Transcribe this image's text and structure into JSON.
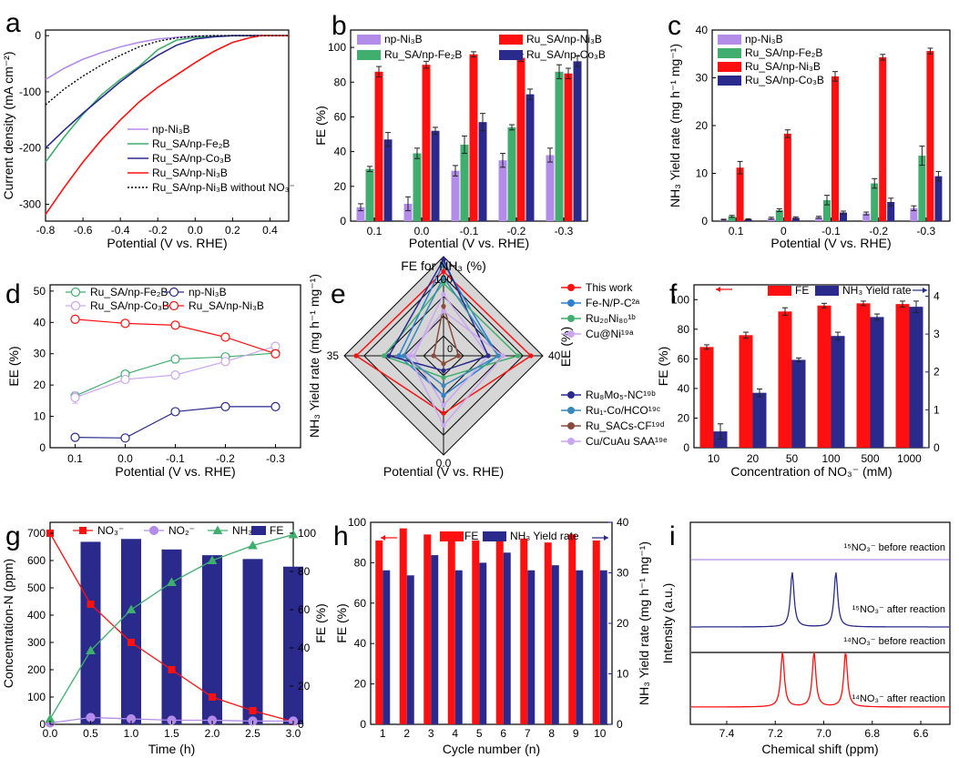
{
  "colors": {
    "purple": "#b28ce8",
    "green": "#3fae6e",
    "red": "#ff1010",
    "navy": "#2a2a8c",
    "black": "#000000",
    "lavender": "#c9a6ef",
    "brown": "#8a4a3c",
    "blue": "#2d7fd0",
    "teal": "#3a88b8",
    "diamond_fill": "#d6d6d6"
  },
  "chart_data": [
    {
      "panel": "a",
      "type": "line",
      "xlabel": "Potential (V vs. RHE)",
      "ylabel": "Current density (mA cm⁻²)",
      "xlim": [
        -0.8,
        0.5
      ],
      "ylim": [
        -330,
        10
      ],
      "xticks": [
        "-0.8",
        "-0.6",
        "-0.4",
        "-0.2",
        "0.0",
        "0.2",
        "0.4"
      ],
      "yticks": [
        "0",
        "-100",
        "-200",
        "-300"
      ],
      "series": [
        {
          "name": "np-Ni₃B",
          "color": "purple",
          "x": [
            -0.8,
            -0.7,
            -0.6,
            -0.5,
            -0.4,
            -0.3,
            -0.2,
            -0.1,
            0.0,
            0.1,
            0.2,
            0.3,
            0.5
          ],
          "y": [
            -78,
            -58,
            -42,
            -30,
            -20,
            -12,
            -6,
            -3,
            -1,
            0,
            0,
            0,
            0
          ]
        },
        {
          "name": "Ru_SA/np-Fe₂B",
          "color": "green",
          "x": [
            -0.8,
            -0.7,
            -0.6,
            -0.5,
            -0.4,
            -0.3,
            -0.2,
            -0.1,
            0.0,
            0.1,
            0.2,
            0.3,
            0.5
          ],
          "y": [
            -225,
            -180,
            -140,
            -105,
            -78,
            -55,
            -25,
            -8,
            -3,
            -1,
            0,
            0,
            0
          ]
        },
        {
          "name": "Ru_SA/np-Co₃B",
          "color": "navy",
          "x": [
            -0.8,
            -0.7,
            -0.6,
            -0.5,
            -0.4,
            -0.3,
            -0.2,
            -0.1,
            0.0,
            0.1,
            0.2,
            0.3,
            0.5
          ],
          "y": [
            -200,
            -168,
            -138,
            -110,
            -82,
            -57,
            -35,
            -17,
            -6,
            -2,
            0,
            0,
            0
          ]
        },
        {
          "name": "Ru_SA/np-Ni₃B",
          "color": "red",
          "x": [
            -0.8,
            -0.7,
            -0.6,
            -0.5,
            -0.4,
            -0.3,
            -0.2,
            -0.1,
            0.0,
            0.1,
            0.2,
            0.3,
            0.35,
            0.5
          ],
          "y": [
            -318,
            -270,
            -225,
            -185,
            -150,
            -118,
            -92,
            -70,
            -48,
            -28,
            -12,
            -3,
            0,
            0
          ]
        },
        {
          "name": "Ru_SA/np-Ni₃B without NO₃⁻",
          "color": "black",
          "dashed": true,
          "x": [
            -0.8,
            -0.7,
            -0.6,
            -0.5,
            -0.4,
            -0.3,
            -0.2,
            -0.1,
            0.0,
            0.1,
            0.2,
            0.3,
            0.5
          ],
          "y": [
            -123,
            -95,
            -72,
            -52,
            -35,
            -20,
            -10,
            -4,
            -1,
            0,
            0,
            0,
            0
          ]
        }
      ],
      "legend": {
        "position": "bottom-right"
      }
    },
    {
      "panel": "b",
      "type": "bar",
      "xlabel": "Potential (V vs. RHE)",
      "ylabel": "FE (%)",
      "ylim": [
        0,
        110
      ],
      "yticks": [
        "0",
        "20",
        "40",
        "60",
        "80",
        "100"
      ],
      "categories": [
        "0.1",
        "0.0",
        "-0.1",
        "-0.2",
        "-0.3"
      ],
      "series": [
        {
          "name": "np-Ni₃B",
          "color": "purple",
          "values": [
            8,
            10,
            29,
            35,
            38
          ],
          "errors": [
            2,
            4,
            3,
            4,
            4
          ]
        },
        {
          "name": "Ru_SA/np-Fe₂B",
          "color": "green",
          "values": [
            30,
            39,
            44,
            54,
            86
          ],
          "errors": [
            1.5,
            3,
            5,
            1.5,
            4
          ]
        },
        {
          "name": "Ru_SA/np-Ni₃B",
          "color": "red",
          "values": [
            86,
            90,
            96,
            94,
            85
          ],
          "errors": [
            3,
            2,
            1.5,
            2,
            3
          ]
        },
        {
          "name": "Ru_SA/np-Co₃B",
          "color": "navy",
          "values": [
            47,
            52,
            57,
            73,
            92
          ],
          "errors": [
            4,
            2,
            5,
            3,
            3
          ]
        }
      ]
    },
    {
      "panel": "c",
      "type": "bar",
      "xlabel": "Potential (V vs. RHE)",
      "ylabel": "NH₃ Yield rate (mg h⁻¹ mg⁻¹)",
      "ylim": [
        0,
        40
      ],
      "yticks": [
        "0",
        "10",
        "20",
        "30",
        "40"
      ],
      "categories": [
        "0.1",
        "0",
        "-0.1",
        "-0.2",
        "-0.3"
      ],
      "series": [
        {
          "name": "np-Ni₃B",
          "color": "purple",
          "values": [
            0.3,
            0.6,
            0.8,
            1.6,
            2.7
          ],
          "errors": [
            0.1,
            0.2,
            0.2,
            0.3,
            0.5
          ]
        },
        {
          "name": "Ru_SA/np-Fe₂B",
          "color": "green",
          "values": [
            1.0,
            2.3,
            4.4,
            7.9,
            13.7
          ],
          "errors": [
            0.2,
            0.3,
            1.0,
            1.0,
            2.0
          ]
        },
        {
          "name": "Ru_SA/np-Ni₃B",
          "color": "red",
          "values": [
            11.2,
            18.3,
            30.3,
            34.3,
            35.6
          ],
          "errors": [
            1.3,
            0.8,
            1.0,
            0.6,
            0.6
          ]
        },
        {
          "name": "Ru_SA/np-Co₃B",
          "color": "navy",
          "values": [
            0.4,
            0.7,
            1.8,
            4.0,
            9.4
          ],
          "errors": [
            0.1,
            0.2,
            0.3,
            0.8,
            1.0
          ]
        }
      ]
    },
    {
      "panel": "d",
      "type": "line",
      "xlabel": "Potential (V vs. RHE)",
      "ylabel": "EE (%)",
      "ylim": [
        0,
        52
      ],
      "yticks": [
        "0",
        "10",
        "20",
        "30",
        "40",
        "50"
      ],
      "categories": [
        "0.1",
        "0.0",
        "-0.1",
        "-0.2",
        "-0.3"
      ],
      "series": [
        {
          "name": "Ru_SA/np-Fe₂B",
          "color": "green",
          "values": [
            16.5,
            23.5,
            28.3,
            29.0,
            30.2
          ],
          "errors": [
            1.0,
            1.0,
            1.0,
            0.5,
            0.5
          ]
        },
        {
          "name": "Ru_SA/np-Co₃B",
          "color": "lavender",
          "values": [
            16.0,
            21.8,
            23.2,
            27.5,
            32.4
          ],
          "errors": [
            1.8,
            1.0,
            1.0,
            0.5,
            0.6
          ]
        },
        {
          "name": "np-Ni₃B",
          "color": "navy",
          "values": [
            3.3,
            3.1,
            11.5,
            13.1,
            13.1
          ],
          "errors": [
            0.8,
            1.0,
            0.6,
            0.5,
            0.7
          ]
        },
        {
          "name": "Ru_SA/np-Ni₃B",
          "color": "red",
          "values": [
            41.0,
            39.7,
            39.1,
            35.3,
            30.0
          ],
          "errors": [
            1.0,
            1.0,
            0.5,
            0.5,
            0.5
          ]
        }
      ]
    },
    {
      "panel": "e",
      "type": "radar",
      "title": "FE for NH₃ (%)",
      "top_label": "100",
      "left_label": "35",
      "right_label": "40",
      "bottom_label": "0.0",
      "center_label": "0",
      "left_axis_label": "NH₃ Yield rate (mg h⁻¹ mg⁻¹)",
      "right_axis_label": "EE (%)",
      "xlabel": "Potential (V vs. RHE)",
      "series": [
        {
          "name": "This work",
          "color": "red",
          "values": [
            0.85,
            0.88,
            0.88,
            0.58
          ]
        },
        {
          "name": "Fe-N/P-C²ᵃ",
          "color": "blue",
          "values": [
            0.93,
            0.55,
            0.45,
            0.4
          ]
        },
        {
          "name": "Ru₂₀Ni₈₀¹ᵇ",
          "color": "green",
          "values": [
            0.73,
            0.75,
            0.6,
            0.22
          ]
        },
        {
          "name": "Cu@Ni¹⁹ᵃ",
          "color": "lavender",
          "values": [
            0.62,
            0.45,
            0.3,
            0.5
          ]
        },
        {
          "name": "Ru₈Mo₅-NC¹⁹ᵇ",
          "color": "navy",
          "values": [
            0.97,
            0.45,
            0.55,
            0.15
          ]
        },
        {
          "name": "Ru₁-Co/HCO¹⁹ᶜ",
          "color": "teal",
          "values": [
            0.79,
            0.55,
            0.4,
            0.3
          ]
        },
        {
          "name": "Ru_SACs-CF¹⁹ᵈ",
          "color": "brown",
          "values": [
            0.5,
            0.15,
            0.1,
            0.08
          ]
        },
        {
          "name": "Cu/CuAu SAA¹⁹ᵉ",
          "color": "lavender",
          "values": [
            0.45,
            0.6,
            0.35,
            0.7
          ]
        }
      ]
    },
    {
      "panel": "f",
      "type": "bar",
      "xlabel": "Concentration of NO₃⁻ (mM)",
      "ylabel": "FE (%)",
      "ylim": [
        0,
        110
      ],
      "yticks": [
        "0",
        "20",
        "40",
        "60",
        "80",
        "100"
      ],
      "y2lim": [
        0,
        4.3
      ],
      "y2ticks": [
        "0",
        "1",
        "2",
        "3",
        "4"
      ],
      "categories": [
        "10",
        "20",
        "50",
        "100",
        "500",
        "1000"
      ],
      "series": [
        {
          "name": "FE",
          "color": "red",
          "axis": "left",
          "values": [
            68,
            76,
            92,
            96,
            97.5,
            97
          ],
          "errors": [
            1.5,
            2,
            2.5,
            1.5,
            1.5,
            2
          ]
        },
        {
          "name": "NH₃ Yield rate",
          "color": "navy",
          "axis": "right",
          "values": [
            0.43,
            1.45,
            2.32,
            2.95,
            3.45,
            3.72
          ],
          "errors": [
            0.2,
            0.1,
            0.05,
            0.1,
            0.08,
            0.15
          ]
        }
      ]
    },
    {
      "panel": "g",
      "type": "line+bar",
      "xlabel": "Time (h)",
      "ylabel": "Concentration-N (ppm)",
      "y2label": "FE (%)",
      "xlim": [
        0,
        3.0
      ],
      "xticks": [
        "0.0",
        "0.5",
        "1.0",
        "1.5",
        "2.0",
        "2.5",
        "3.0"
      ],
      "ylim": [
        0,
        740
      ],
      "yticks": [
        "0",
        "100",
        "200",
        "300",
        "400",
        "500",
        "600",
        "700"
      ],
      "y2lim": [
        0,
        105.7
      ],
      "y2ticks": [
        "0",
        "20",
        "40",
        "60",
        "80",
        "100"
      ],
      "series": [
        {
          "name": "NO₃⁻",
          "color": "red",
          "x": [
            0,
            0.5,
            1.0,
            1.5,
            2.0,
            2.5,
            3.0
          ],
          "y": [
            700,
            440,
            300,
            200,
            100,
            50,
            10
          ]
        },
        {
          "name": "NO₂⁻",
          "color": "purple",
          "x": [
            0,
            0.5,
            1.0,
            1.5,
            2.0,
            2.5,
            3.0
          ],
          "y": [
            5,
            25,
            20,
            15,
            15,
            12,
            12
          ]
        },
        {
          "name": "NH₃",
          "color": "green",
          "x": [
            0,
            0.5,
            1.0,
            1.5,
            2.0,
            2.5,
            3.0
          ],
          "y": [
            20,
            270,
            420,
            520,
            600,
            655,
            695
          ]
        },
        {
          "name": "FE",
          "color": "navy",
          "bars": true,
          "x": [
            0.5,
            1.0,
            1.5,
            2.0,
            2.5,
            3.0
          ],
          "y": [
            95.5,
            97,
            91.5,
            88.5,
            86.5,
            82.5
          ]
        }
      ]
    },
    {
      "panel": "h",
      "type": "bar",
      "xlabel": "Cycle number (n)",
      "ylabel": "FE (%)",
      "y2label": "NH₃ Yield rate (mg h⁻¹ mg⁻¹)",
      "ylim": [
        0,
        100
      ],
      "yticks": [
        "0",
        "20",
        "40",
        "60",
        "80",
        "100"
      ],
      "y2lim": [
        0,
        40
      ],
      "y2ticks": [
        "0",
        "10",
        "20",
        "30",
        "40"
      ],
      "categories": [
        "1",
        "2",
        "3",
        "4",
        "5",
        "6",
        "7",
        "8",
        "9",
        "10"
      ],
      "series": [
        {
          "name": "FE",
          "color": "red",
          "axis": "left",
          "values": [
            91,
            97,
            94,
            91,
            91,
            91,
            92,
            90,
            94,
            91
          ]
        },
        {
          "name": "NH₃ Yield rate",
          "color": "navy",
          "axis": "right",
          "values": [
            30.5,
            29.5,
            33.5,
            30.5,
            32,
            34,
            30.5,
            31.5,
            30.5,
            30.5
          ]
        }
      ]
    },
    {
      "panel": "i",
      "type": "spectra",
      "xlabel": "Chemical shift (ppm)",
      "ylabel": "Intensity (a.u.)",
      "xlim": [
        7.55,
        6.48
      ],
      "xticks": [
        "7.4",
        "7.2",
        "7.0",
        "6.8",
        "6.6"
      ],
      "traces": [
        {
          "label": "¹⁵NO₃⁻ before reaction",
          "color": "purple",
          "peaks": []
        },
        {
          "label": "¹⁵NO₃⁻ after reaction",
          "color": "navy",
          "peaks": [
            7.13,
            6.95
          ]
        },
        {
          "label": "¹⁴NO₃⁻ before reaction",
          "color": "black",
          "peaks": []
        },
        {
          "label": "¹⁴NO₃⁻ after reaction",
          "color": "red",
          "peaks": [
            7.17,
            7.04,
            6.91
          ]
        }
      ]
    }
  ],
  "panel_labels": [
    "a",
    "b",
    "c",
    "d",
    "e",
    "f",
    "g",
    "h",
    "i"
  ]
}
